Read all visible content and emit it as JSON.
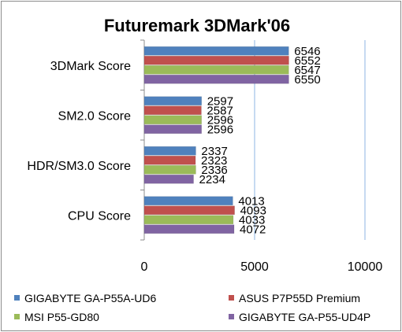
{
  "chart_data": {
    "type": "bar",
    "orientation": "horizontal",
    "title": "Futuremark 3DMark'06",
    "categories": [
      "3DMark Score",
      "SM2.0 Score",
      "HDR/SM3.0 Score",
      "CPU Score"
    ],
    "series": [
      {
        "name": "GIGABYTE GA-P55A-UD6",
        "color": "#4f81bd",
        "values": [
          6546,
          2597,
          2337,
          4013
        ]
      },
      {
        "name": "ASUS P7P55D Premium",
        "color": "#c0504d",
        "values": [
          6552,
          2587,
          2323,
          4093
        ]
      },
      {
        "name": "MSI P55-GD80",
        "color": "#9bbb59",
        "values": [
          6547,
          2596,
          2336,
          4033
        ]
      },
      {
        "name": "GIGABYTE GA-P55-UD4P",
        "color": "#8064a2",
        "values": [
          6550,
          2596,
          2234,
          4072
        ]
      }
    ],
    "xlim": [
      0,
      10000
    ],
    "xticks": [
      0,
      5000,
      10000
    ],
    "grid": true,
    "legend_position": "bottom"
  }
}
